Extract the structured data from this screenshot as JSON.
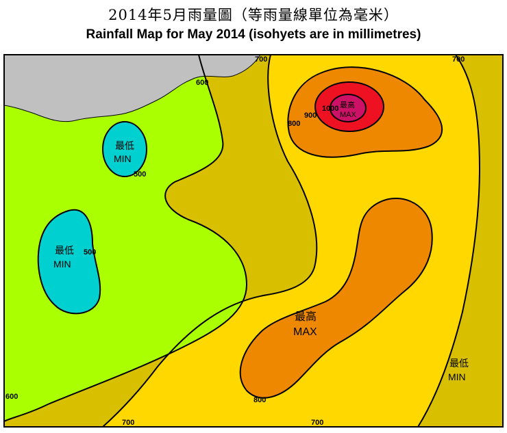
{
  "title": {
    "zh": "2014年5月雨量圖（等雨量線單位為毫米）",
    "en": "Rainfall Map for May 2014 (isohyets are in millimetres)"
  },
  "colors": {
    "land_grey": "#c0c0c0",
    "band_lt_500": "#00d0d0",
    "band_500_600": "#aaff00",
    "band_600_700": "#d8c000",
    "band_700_800": "#ffd800",
    "band_800_900": "#ee8800",
    "band_900_1000": "#ee1122",
    "band_gt_1000": "#cc1166"
  },
  "isohyet_labels": {
    "iso_700_top": "700",
    "iso_600_top": "600",
    "iso_700_topright": "700",
    "iso_800_ne": "800",
    "iso_900_ne": "900",
    "iso_1000_ne": "1000",
    "iso_500_nw": "500",
    "iso_500_w": "500",
    "iso_600_bl": "600",
    "iso_700_bottom": "700",
    "iso_800_bottom": "800",
    "iso_700_bottomright": "700"
  },
  "extremes": {
    "min_nw": {
      "zh": "最低",
      "en": "MIN"
    },
    "min_w": {
      "zh": "最低",
      "en": "MIN"
    },
    "max_ne": {
      "zh": "最高",
      "en": "MAX"
    },
    "max_centre": {
      "zh": "最高",
      "en": "MAX"
    },
    "min_se": {
      "zh": "最低",
      "en": "MIN"
    }
  }
}
